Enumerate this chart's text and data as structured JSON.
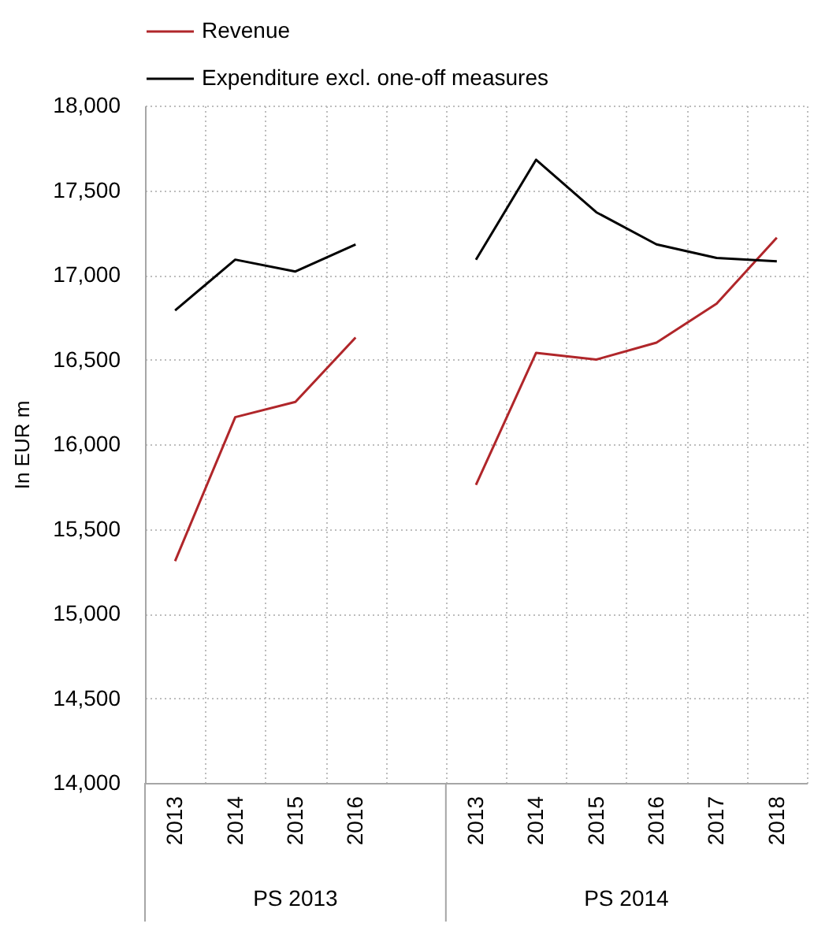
{
  "chart_data": {
    "type": "line",
    "ylabel": "In EUR m",
    "categories": [
      "2013",
      "2014",
      "2015",
      "2016",
      null,
      "2013",
      "2014",
      "2015",
      "2016",
      "2017",
      "2018"
    ],
    "series": [
      {
        "name": "Revenue",
        "color": "#b0262a",
        "values": [
          15310,
          16160,
          16250,
          16630,
          null,
          15760,
          16540,
          16500,
          16600,
          16830,
          17220
        ]
      },
      {
        "name": "Expenditure excl. one-off measures",
        "color": "#000000",
        "values": [
          16790,
          17090,
          17020,
          17180,
          null,
          17090,
          17680,
          17370,
          17180,
          17100,
          17080
        ]
      }
    ],
    "ylim": [
      14000,
      18000
    ],
    "yticks": [
      {
        "value": 14000,
        "label": "14,000"
      },
      {
        "value": 14500,
        "label": "14,500"
      },
      {
        "value": 15000,
        "label": "15,000"
      },
      {
        "value": 15500,
        "label": "15,500"
      },
      {
        "value": 16000,
        "label": "16,000"
      },
      {
        "value": 16500,
        "label": "16,500"
      },
      {
        "value": 17000,
        "label": "17,000"
      },
      {
        "value": 17500,
        "label": "17,500"
      },
      {
        "value": 18000,
        "label": "18,000"
      }
    ],
    "grid": true,
    "legend": "top left",
    "annotations": [
      "PS 2013",
      "PS 2014"
    ]
  }
}
